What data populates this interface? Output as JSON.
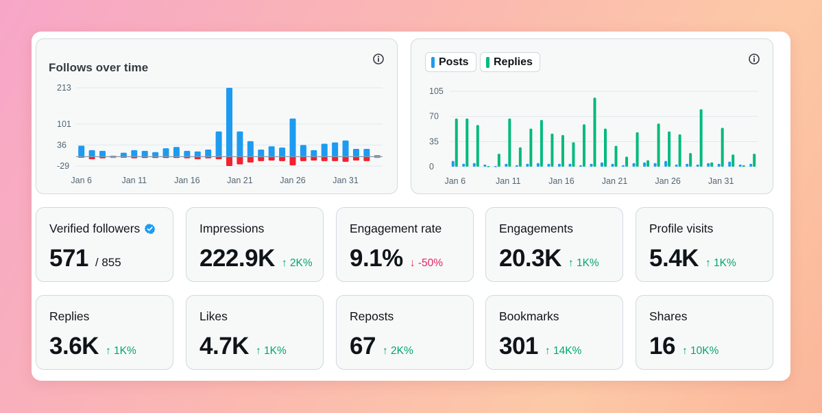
{
  "colors": {
    "blue": "#1d9bf0",
    "green": "#00ba7c",
    "red": "#f4212e",
    "up": "#00a66b",
    "down": "#e0245e"
  },
  "follows_card": {
    "title": "Follows over time",
    "info_icon": "info-icon"
  },
  "posts_card": {
    "legend": [
      {
        "label": "Posts",
        "color": "#1d9bf0"
      },
      {
        "label": "Replies",
        "color": "#00ba7c"
      }
    ],
    "info_icon": "info-icon"
  },
  "chart_data": [
    {
      "type": "bar",
      "title": "Follows over time",
      "x_labels": [
        "Jan 6",
        "Jan 11",
        "Jan 16",
        "Jan 21",
        "Jan 26",
        "Jan 31"
      ],
      "y_ticks": [
        213,
        101,
        36,
        -29
      ],
      "ylim": [
        -29,
        213
      ],
      "grid": true,
      "series": [
        {
          "name": "Follows",
          "color": "#1d9bf0",
          "values": [
            34,
            20,
            18,
            3,
            12,
            20,
            18,
            14,
            26,
            30,
            18,
            16,
            22,
            78,
            213,
            78,
            48,
            22,
            32,
            28,
            118,
            36,
            20,
            40,
            44,
            50,
            24,
            24,
            5
          ]
        },
        {
          "name": "Unfollows",
          "color": "#f4212e",
          "values": [
            -3,
            -8,
            -5,
            -4,
            -2,
            -5,
            -4,
            -4,
            -4,
            -4,
            -5,
            -8,
            -5,
            -8,
            -29,
            -24,
            -18,
            -14,
            -12,
            -14,
            -27,
            -14,
            -12,
            -14,
            -14,
            -16,
            -12,
            -14,
            -4
          ]
        }
      ]
    },
    {
      "type": "bar",
      "x_labels": [
        "Jan 6",
        "Jan 11",
        "Jan 16",
        "Jan 21",
        "Jan 26",
        "Jan 31"
      ],
      "y_ticks": [
        105,
        70,
        35,
        0
      ],
      "ylim": [
        0,
        105
      ],
      "grid": true,
      "series": [
        {
          "name": "Posts",
          "color": "#1d9bf0",
          "values": [
            8,
            4,
            5,
            3,
            1,
            4,
            2,
            4,
            5,
            4,
            4,
            4,
            2,
            4,
            6,
            4,
            2,
            5,
            6,
            5,
            8,
            3,
            4,
            3,
            5,
            4,
            7,
            3,
            4
          ]
        },
        {
          "name": "Replies",
          "color": "#00ba7c",
          "values": [
            67,
            67,
            58,
            1,
            18,
            67,
            27,
            53,
            65,
            46,
            44,
            34,
            59,
            96,
            53,
            29,
            14,
            48,
            9,
            60,
            49,
            45,
            19,
            80,
            6,
            54,
            17,
            2,
            18
          ]
        }
      ]
    }
  ],
  "stats": [
    {
      "label": "Verified followers",
      "value": "571",
      "total": "/ 855",
      "icon": "verified-badge-icon"
    },
    {
      "label": "Impressions",
      "value": "222.9K",
      "delta": "↑ 2K%",
      "dir": "up"
    },
    {
      "label": "Engagement rate",
      "value": "9.1%",
      "delta": "↓ -50%",
      "dir": "down"
    },
    {
      "label": "Engagements",
      "value": "20.3K",
      "delta": "↑ 1K%",
      "dir": "up"
    },
    {
      "label": "Profile visits",
      "value": "5.4K",
      "delta": "↑ 1K%",
      "dir": "up"
    },
    {
      "label": "Replies",
      "value": "3.6K",
      "delta": "↑ 1K%",
      "dir": "up"
    },
    {
      "label": "Likes",
      "value": "4.7K",
      "delta": "↑ 1K%",
      "dir": "up"
    },
    {
      "label": "Reposts",
      "value": "67",
      "delta": "↑ 2K%",
      "dir": "up"
    },
    {
      "label": "Bookmarks",
      "value": "301",
      "delta": "↑ 14K%",
      "dir": "up"
    },
    {
      "label": "Shares",
      "value": "16",
      "delta": "↑ 10K%",
      "dir": "up"
    }
  ]
}
